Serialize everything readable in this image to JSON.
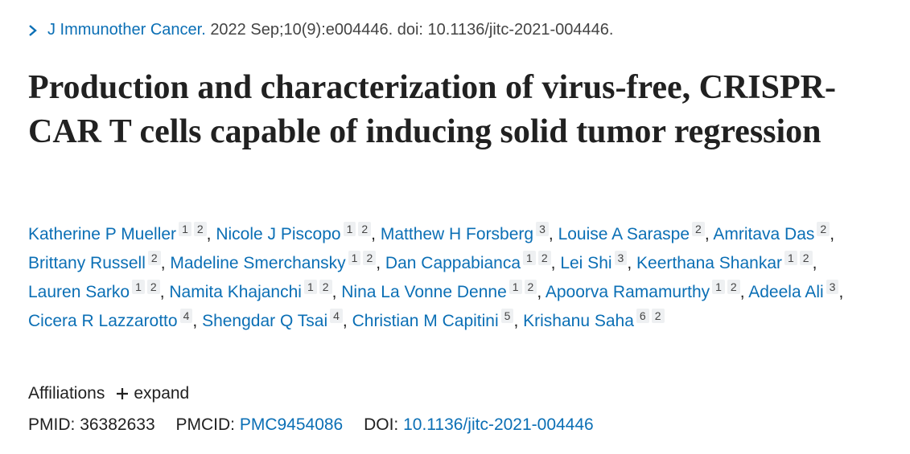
{
  "citation": {
    "journal": "J Immunother Cancer.",
    "details": "2022 Sep;10(9):e004446. doi: 10.1136/jitc-2021-004446."
  },
  "title": "Production and characterization of virus-free, CRISPR-CAR T cells capable of inducing solid tumor regression",
  "author_separator": ",",
  "authors": [
    {
      "name": "Katherine P Mueller",
      "affiliations": [
        1,
        2
      ]
    },
    {
      "name": "Nicole J Piscopo",
      "affiliations": [
        1,
        2
      ]
    },
    {
      "name": "Matthew H Forsberg",
      "affiliations": [
        3
      ]
    },
    {
      "name": "Louise A Saraspe",
      "affiliations": [
        2
      ]
    },
    {
      "name": "Amritava Das",
      "affiliations": [
        2
      ]
    },
    {
      "name": "Brittany Russell",
      "affiliations": [
        2
      ]
    },
    {
      "name": "Madeline Smerchansky",
      "affiliations": [
        1,
        2
      ]
    },
    {
      "name": "Dan Cappabianca",
      "affiliations": [
        1,
        2
      ]
    },
    {
      "name": "Lei Shi",
      "affiliations": [
        3
      ]
    },
    {
      "name": "Keerthana Shankar",
      "affiliations": [
        1,
        2
      ]
    },
    {
      "name": "Lauren Sarko",
      "affiliations": [
        1,
        2
      ]
    },
    {
      "name": "Namita Khajanchi",
      "affiliations": [
        1,
        2
      ]
    },
    {
      "name": "Nina La Vonne Denne",
      "affiliations": [
        1,
        2
      ]
    },
    {
      "name": "Apoorva Ramamurthy",
      "affiliations": [
        1,
        2
      ]
    },
    {
      "name": "Adeela Ali",
      "affiliations": [
        3
      ]
    },
    {
      "name": "Cicera R Lazzarotto",
      "affiliations": [
        4
      ]
    },
    {
      "name": "Shengdar Q Tsai",
      "affiliations": [
        4
      ]
    },
    {
      "name": "Christian M Capitini",
      "affiliations": [
        5
      ]
    },
    {
      "name": "Krishanu Saha",
      "affiliations": [
        6,
        2
      ]
    }
  ],
  "affiliations": {
    "label": "Affiliations",
    "toggle": "expand"
  },
  "identifiers": {
    "pmid_label": "PMID:",
    "pmid": "36382633",
    "pmcid_label": "PMCID:",
    "pmcid": "PMC9454086",
    "doi_label": "DOI:",
    "doi": "10.1136/jitc-2021-004446"
  }
}
